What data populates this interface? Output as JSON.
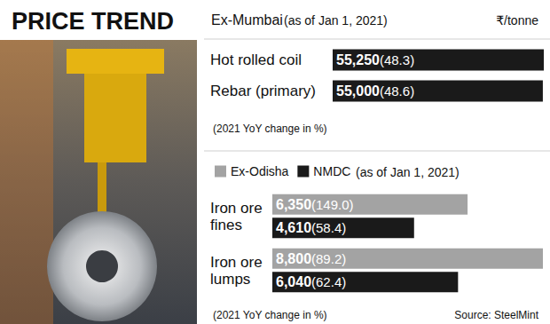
{
  "title": "PRICE TREND",
  "source": "Source: SteelMint",
  "chart_data": [
    {
      "type": "bar",
      "orientation": "horizontal",
      "title": "Ex-Mumbai",
      "subtitle": "(as of Jan 1, 2021)",
      "xlabel": "₹/tonne",
      "annotations": [
        "(2021 YoY change in %)"
      ],
      "categories": [
        "Hot rolled coil",
        "Rebar (primary)"
      ],
      "values": [
        55250,
        55000
      ],
      "value_labels": [
        "55,250",
        "55,000"
      ],
      "yoy_change": [
        48.3,
        48.6
      ],
      "color": "#1a1a1a",
      "xlim": [
        0,
        55250
      ],
      "tick_labels": false,
      "grid": false,
      "data_labels": true
    },
    {
      "type": "bar",
      "orientation": "horizontal",
      "subtitle": "(as of Jan 1, 2021)",
      "annotations": [
        "(2021 YoY change in %)"
      ],
      "categories": [
        "Iron ore fines",
        "Iron ore lumps"
      ],
      "series": [
        {
          "name": "Ex-Odisha",
          "color": "#a3a3a3",
          "values": [
            6350,
            8800
          ],
          "value_labels": [
            "6,350",
            "8,800"
          ],
          "yoy_change": [
            149.0,
            89.2
          ]
        },
        {
          "name": "NMDC",
          "color": "#1a1a1a",
          "values": [
            4610,
            6040
          ],
          "value_labels": [
            "4,610",
            "6,040"
          ],
          "yoy_change": [
            58.4,
            62.4
          ]
        }
      ],
      "xlim": [
        0,
        8800
      ],
      "tick_labels": false,
      "grid": false,
      "data_labels": true,
      "legend": "top"
    }
  ]
}
